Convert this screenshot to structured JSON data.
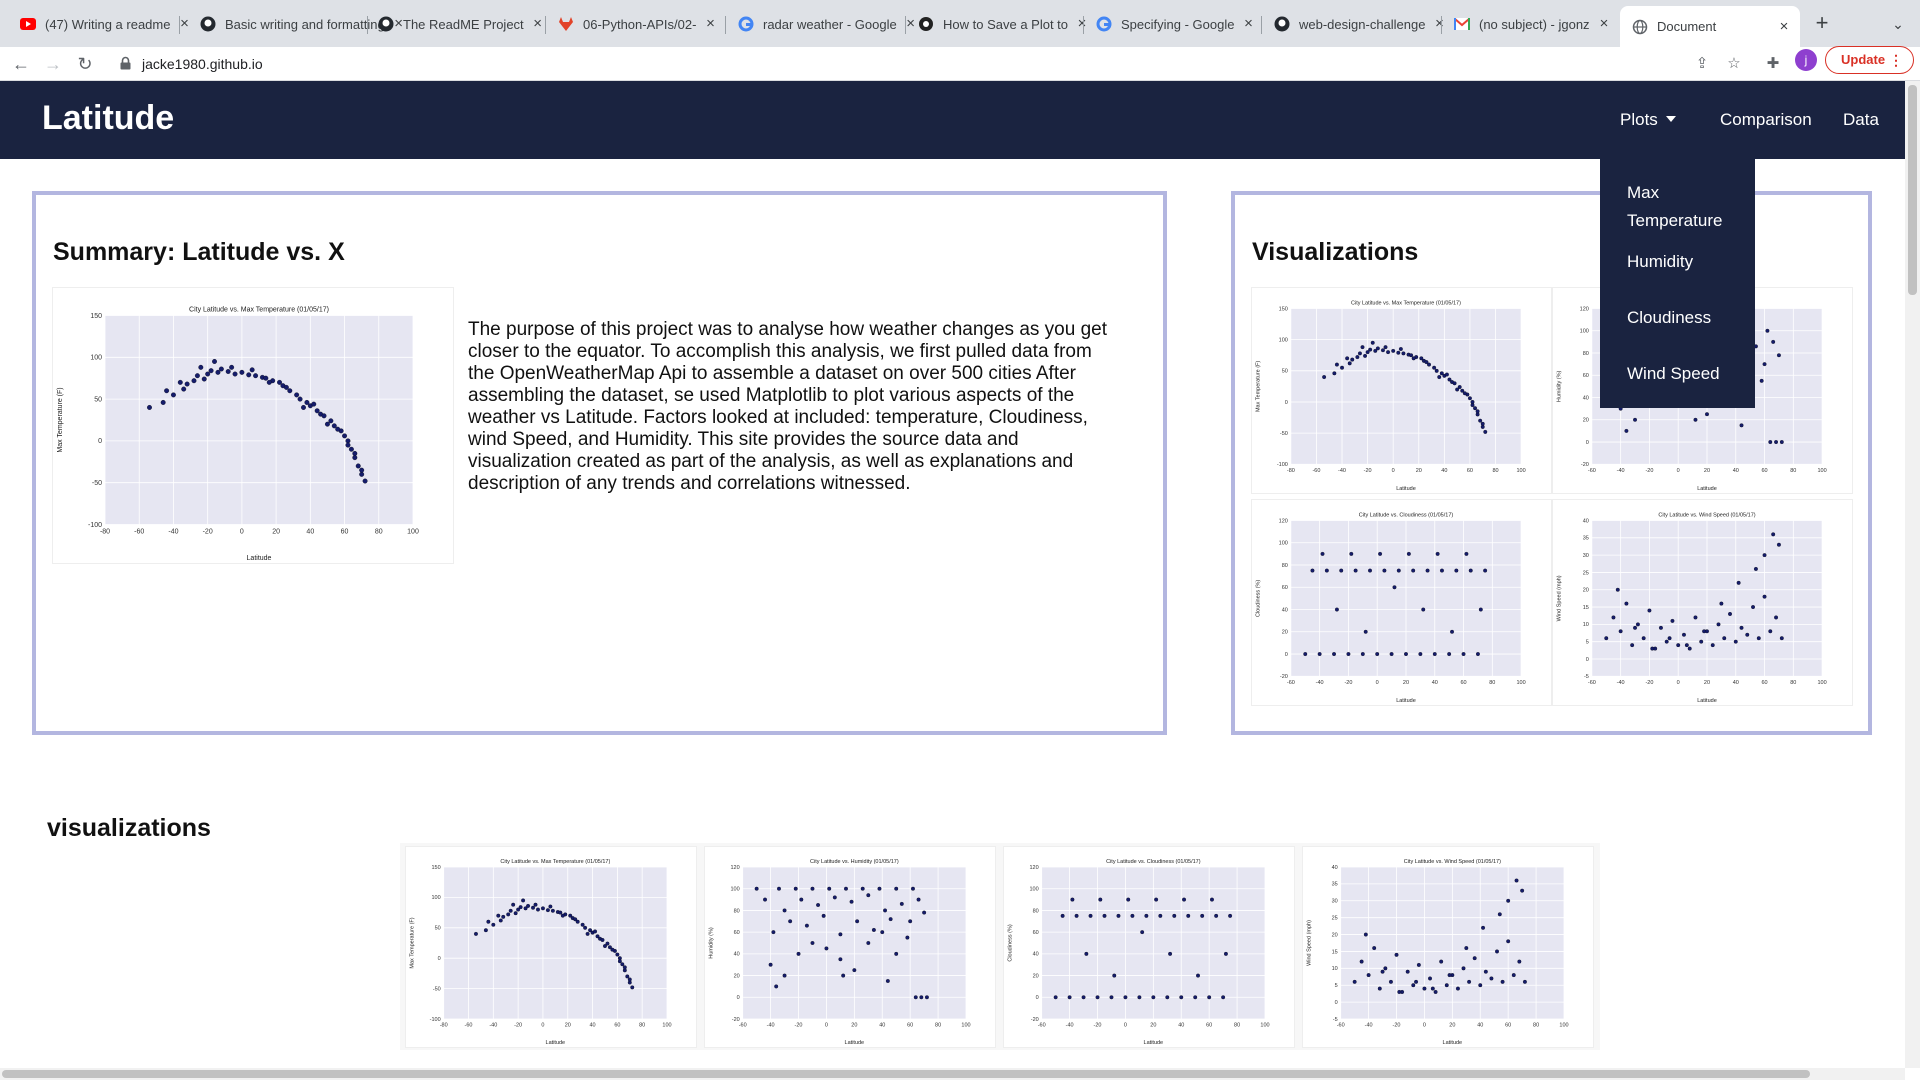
{
  "browser": {
    "tabs": [
      {
        "title": "(47) Writing a readme",
        "icon": "youtube-icon"
      },
      {
        "title": "Basic writing and formatting",
        "icon": "github-icon"
      },
      {
        "title": "The ReadME Project",
        "icon": "github-icon"
      },
      {
        "title": "06-Python-APIs/02-",
        "icon": "gitlab-icon"
      },
      {
        "title": "radar weather - Google",
        "icon": "google-icon"
      },
      {
        "title": "How to Save a Plot to",
        "icon": "site-icon"
      },
      {
        "title": "Specifying - Google",
        "icon": "google-icon"
      },
      {
        "title": "web-design-challenge",
        "icon": "github-icon"
      },
      {
        "title": "(no subject) - jgonz",
        "icon": "gmail-icon"
      },
      {
        "title": "Document",
        "icon": "globe-icon"
      }
    ],
    "url": "jacke1980.github.io",
    "profile_initial": "j",
    "update_label": "Update"
  },
  "page": {
    "brand": "Latitude",
    "nav": {
      "plots": "Plots",
      "comparison": "Comparison",
      "data": "Data"
    },
    "dropdown": [
      "Max Temperature",
      "Humidity",
      "Cloudiness",
      "Wind Speed"
    ],
    "summary": {
      "title": "Summary: Latitude vs. X",
      "text": "The purpose of this project was to analyse how weather changes as you get closer to the equator. To accomplish this analysis, we first pulled data from the OpenWeatherMap Api to assemble a dataset on over 500 cities After assembling the dataset, se used Matplotlib to plot various aspects of the weather vs Latitude. Factors looked at included: temperature, Cloudiness, wind Speed, and Humidity. This site provides the source data and visualization created as part of the analysis, as well as explanations and description of any trends and correlations witnessed."
    },
    "visualizations_title": "Visualizations",
    "section_title": "visualizations"
  },
  "chart_data": [
    {
      "type": "scatter",
      "title": "City Latitude vs. Max Temperature (01/05/17)",
      "xlabel": "Latitude",
      "ylabel": "Max Temperature (F)",
      "xlim": [
        -80,
        100
      ],
      "ylim": [
        -100,
        150
      ],
      "xticks": [
        -80,
        -60,
        -40,
        -20,
        0,
        20,
        40,
        60,
        80,
        100
      ],
      "yticks": [
        -100,
        -50,
        0,
        50,
        100,
        150
      ],
      "grid": true,
      "x": [
        -54,
        -46,
        -40,
        -34,
        -32,
        -28,
        -26,
        -22,
        -20,
        -18,
        -14,
        -12,
        -8,
        -4,
        0,
        4,
        8,
        12,
        14,
        18,
        22,
        24,
        28,
        32,
        34,
        38,
        40,
        44,
        46,
        48,
        52,
        54,
        58,
        60,
        62,
        64,
        66,
        68,
        70,
        72,
        -44,
        -36,
        -24,
        -16,
        -6,
        6,
        16,
        26,
        36,
        42,
        50,
        56,
        62,
        66,
        70
      ],
      "y": [
        40,
        46,
        55,
        62,
        68,
        72,
        78,
        74,
        80,
        84,
        82,
        86,
        83,
        80,
        82,
        79,
        78,
        76,
        75,
        72,
        70,
        66,
        60,
        55,
        50,
        46,
        42,
        36,
        32,
        30,
        24,
        18,
        12,
        6,
        0,
        -10,
        -20,
        -30,
        -40,
        -48,
        60,
        70,
        88,
        95,
        88,
        85,
        70,
        64,
        40,
        44,
        20,
        14,
        -5,
        -15,
        -35
      ]
    },
    {
      "type": "scatter",
      "title": "City Latitude vs. Humidity (01/05/17)",
      "xlabel": "Latitude",
      "ylabel": "Humidity (%)",
      "xlim": [
        -60,
        100
      ],
      "ylim": [
        -20,
        120
      ],
      "xticks": [
        -60,
        -40,
        -20,
        0,
        20,
        40,
        60,
        80,
        100
      ],
      "yticks": [
        -20,
        0,
        20,
        40,
        60,
        80,
        100,
        120
      ],
      "grid": true,
      "x": [
        -50,
        -44,
        -38,
        -34,
        -30,
        -26,
        -22,
        -18,
        -14,
        -10,
        -6,
        -2,
        2,
        6,
        10,
        14,
        18,
        22,
        26,
        30,
        34,
        38,
        42,
        46,
        50,
        54,
        58,
        62,
        66,
        70,
        -40,
        -30,
        -20,
        -10,
        0,
        10,
        20,
        30,
        40,
        50,
        60,
        68,
        72,
        -36,
        12,
        44,
        64
      ],
      "y": [
        100,
        90,
        60,
        100,
        80,
        70,
        100,
        90,
        66,
        100,
        85,
        75,
        100,
        92,
        58,
        100,
        88,
        70,
        100,
        94,
        62,
        100,
        80,
        72,
        100,
        86,
        55,
        100,
        90,
        78,
        30,
        20,
        40,
        50,
        45,
        35,
        25,
        50,
        60,
        40,
        70,
        0,
        0,
        10,
        20,
        15,
        0
      ]
    },
    {
      "type": "scatter",
      "title": "City Latitude vs. Cloudiness (01/05/17)",
      "xlabel": "Latitude",
      "ylabel": "Cloudiness (%)",
      "xlim": [
        -60,
        100
      ],
      "ylim": [
        -20,
        120
      ],
      "xticks": [
        -60,
        -40,
        -20,
        0,
        20,
        40,
        60,
        80,
        100
      ],
      "yticks": [
        -20,
        0,
        20,
        40,
        60,
        80,
        100,
        120
      ],
      "grid": true,
      "x": [
        -50,
        -40,
        -30,
        -20,
        -10,
        0,
        10,
        20,
        30,
        40,
        50,
        60,
        70,
        -45,
        -35,
        -25,
        -15,
        -5,
        5,
        15,
        25,
        35,
        45,
        55,
        65,
        75,
        -38,
        -18,
        2,
        22,
        42,
        62,
        -28,
        -8,
        12,
        32,
        52,
        72
      ],
      "y": [
        0,
        0,
        0,
        0,
        0,
        0,
        0,
        0,
        0,
        0,
        0,
        0,
        0,
        75,
        75,
        75,
        75,
        75,
        75,
        75,
        75,
        75,
        75,
        75,
        75,
        75,
        90,
        90,
        90,
        90,
        90,
        90,
        40,
        20,
        60,
        40,
        20,
        40
      ]
    },
    {
      "type": "scatter",
      "title": "City Latitude vs. Wind Speed (01/05/17)",
      "xlabel": "Latitude",
      "ylabel": "Wind Speed (mph)",
      "xlim": [
        -60,
        100
      ],
      "ylim": [
        -5,
        40
      ],
      "xticks": [
        -60,
        -40,
        -20,
        0,
        20,
        40,
        60,
        80,
        100
      ],
      "yticks": [
        -5,
        0,
        5,
        10,
        15,
        20,
        25,
        30,
        35,
        40
      ],
      "grid": true,
      "x": [
        -50,
        -45,
        -40,
        -36,
        -32,
        -28,
        -24,
        -20,
        -16,
        -12,
        -8,
        -4,
        0,
        4,
        8,
        12,
        16,
        20,
        24,
        28,
        32,
        36,
        40,
        44,
        48,
        52,
        56,
        60,
        64,
        68,
        72,
        -42,
        -30,
        -18,
        -6,
        6,
        18,
        30,
        42,
        54,
        60,
        66,
        70
      ],
      "y": [
        6,
        12,
        8,
        16,
        4,
        10,
        6,
        14,
        3,
        9,
        5,
        11,
        4,
        7,
        3,
        12,
        5,
        8,
        4,
        10,
        6,
        13,
        5,
        9,
        7,
        15,
        6,
        18,
        8,
        12,
        6,
        20,
        9,
        3,
        6,
        4,
        8,
        16,
        22,
        26,
        30,
        36,
        33
      ]
    }
  ]
}
